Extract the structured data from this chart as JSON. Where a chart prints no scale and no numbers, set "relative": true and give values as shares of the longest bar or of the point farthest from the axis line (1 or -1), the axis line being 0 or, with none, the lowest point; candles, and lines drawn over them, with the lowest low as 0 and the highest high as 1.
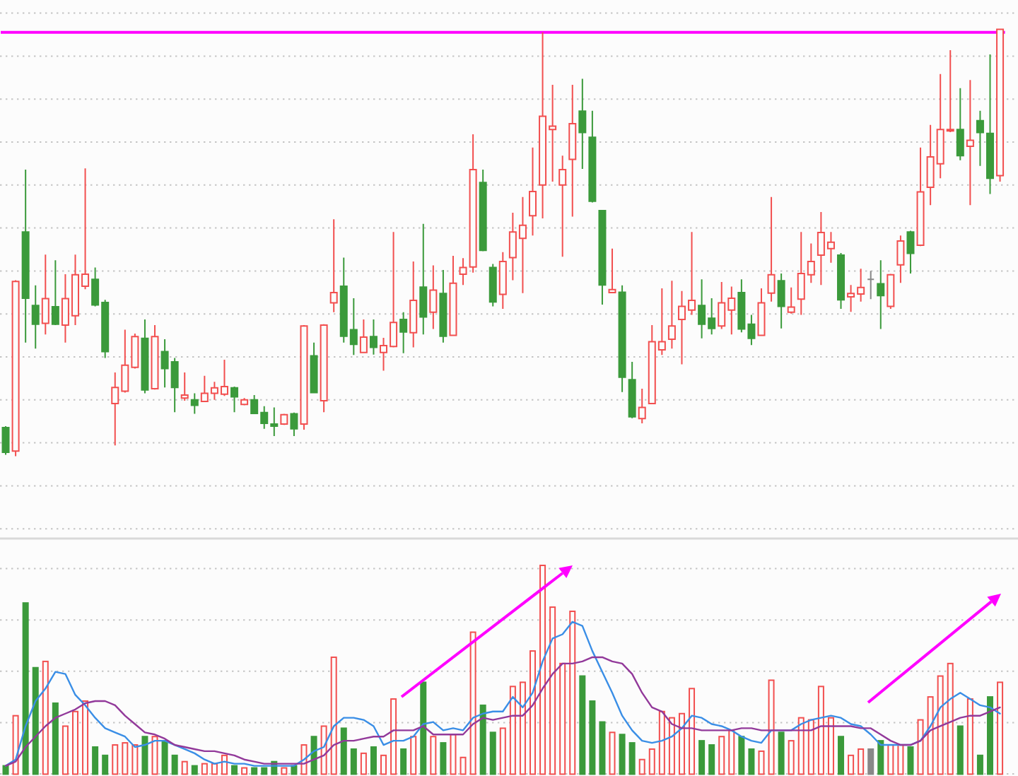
{
  "chart_data": [
    {
      "type": "candlestick",
      "relative": true,
      "grid": "y",
      "categories": [
        null,
        null,
        null,
        null,
        null,
        null,
        null,
        null,
        null,
        null,
        null,
        null,
        null,
        null,
        null,
        null,
        null,
        null,
        null,
        null,
        null,
        null,
        null,
        null,
        null,
        null,
        null,
        null,
        null,
        null,
        null,
        null,
        null,
        null,
        null,
        null,
        null,
        null,
        null,
        null,
        null,
        null,
        null,
        null,
        null,
        null,
        null,
        null,
        null,
        null,
        null,
        null,
        null,
        null,
        null,
        null,
        null,
        null,
        null,
        null,
        null,
        null,
        null,
        null,
        null,
        null,
        null,
        null,
        null,
        null,
        null,
        null,
        null,
        null,
        null,
        null,
        null,
        null,
        null,
        null,
        null,
        null,
        null,
        null,
        null,
        null,
        null,
        null,
        null,
        null,
        null,
        null,
        null,
        null,
        null,
        null,
        null,
        null,
        null,
        null,
        null
      ],
      "ohlc": [
        [
          0.067,
          0.07,
          0.003,
          0.009
        ],
        [
          0.012,
          0.412,
          0,
          0.409
        ],
        [
          0.525,
          0.671,
          0.266,
          0.37
        ],
        [
          0.353,
          0.4,
          0.252,
          0.309
        ],
        [
          0.311,
          0.472,
          0.285,
          0.369
        ],
        [
          0.35,
          0.459,
          0.307,
          0.309
        ],
        [
          0.307,
          0.426,
          0.266,
          0.369
        ],
        [
          0.329,
          0.472,
          0.307,
          0.425
        ],
        [
          0.398,
          0.674,
          0.391,
          0.426
        ],
        [
          0.414,
          0.442,
          0.351,
          0.354
        ],
        [
          0.36,
          0.366,
          0.23,
          0.245
        ],
        [
          0.123,
          0.196,
          0.025,
          0.161
        ],
        [
          0.152,
          0.296,
          0.149,
          0.213
        ],
        [
          0.208,
          0.287,
          0.205,
          0.28
        ],
        [
          0.276,
          0.32,
          0.147,
          0.155
        ],
        [
          0.158,
          0.307,
          0.156,
          0.28
        ],
        [
          0.245,
          0.274,
          0.161,
          0.205
        ],
        [
          0.221,
          0.23,
          0.103,
          0.161
        ],
        [
          0.136,
          0.196,
          0.13,
          0.143
        ],
        [
          0.132,
          0.147,
          0.099,
          0.119
        ],
        [
          0.128,
          0.188,
          0.128,
          0.147
        ],
        [
          0.147,
          0.174,
          0.132,
          0.16
        ],
        [
          0.145,
          0.226,
          0.141,
          0.163
        ],
        [
          0.16,
          0.163,
          0.103,
          0.139
        ],
        [
          0.121,
          0.136,
          0.119,
          0.132
        ],
        [
          0.132,
          0.143,
          0.1,
          0.1
        ],
        [
          0.102,
          0.117,
          0.064,
          0.077
        ],
        [
          0.075,
          0.114,
          0.047,
          0.07
        ],
        [
          0.075,
          0.099,
          0.073,
          0.097
        ],
        [
          0.099,
          0.102,
          0.047,
          0.064
        ],
        [
          0.075,
          0.307,
          0.062,
          0.305
        ],
        [
          0.235,
          0.266,
          0.147,
          0.149
        ],
        [
          0.13,
          0.309,
          0.103,
          0.307
        ],
        [
          0.359,
          0.555,
          0.337,
          0.383
        ],
        [
          0.398,
          0.465,
          0.266,
          0.281
        ],
        [
          0.296,
          0.37,
          0.237,
          0.262
        ],
        [
          0.243,
          0.32,
          0.241,
          0.279
        ],
        [
          0.28,
          0.32,
          0.238,
          0.255
        ],
        [
          0.243,
          0.277,
          0.2,
          0.259
        ],
        [
          0.257,
          0.525,
          0.255,
          0.313
        ],
        [
          0.32,
          0.337,
          0.241,
          0.291
        ],
        [
          0.289,
          0.456,
          0.255,
          0.365
        ],
        [
          0.396,
          0.544,
          0.285,
          0.326
        ],
        [
          0.337,
          0.447,
          0.298,
          0.389
        ],
        [
          0.381,
          0.436,
          0.266,
          0.281
        ],
        [
          0.283,
          0.469,
          0.283,
          0.405
        ],
        [
          0.426,
          0.464,
          0.401,
          0.442
        ],
        [
          0.443,
          0.754,
          0.43,
          0.671
        ],
        [
          0.641,
          0.671,
          0.48,
          0.482
        ],
        [
          0.442,
          0.45,
          0.351,
          0.361
        ],
        [
          0.379,
          0.478,
          0.345,
          0.456
        ],
        [
          0.465,
          0.57,
          0.412,
          0.525
        ],
        [
          0.51,
          0.607,
          0.382,
          0.541
        ],
        [
          0.563,
          0.723,
          0.517,
          0.62
        ],
        [
          0.635,
          0.993,
          0.557,
          0.796
        ],
        [
          0.765,
          0.87,
          0.643,
          0.773
        ],
        [
          0.635,
          0.704,
          0.467,
          0.671
        ],
        [
          0.695,
          0.87,
          0.561,
          0.779
        ],
        [
          0.808,
          0.884,
          0.673,
          0.758
        ],
        [
          0.747,
          0.809,
          0.594,
          0.597
        ],
        [
          0.575,
          0.575,
          0.355,
          0.401
        ],
        [
          0.383,
          0.486,
          0.382,
          0.39
        ],
        [
          0.384,
          0.4,
          0.15,
          0.185
        ],
        [
          0.179,
          0.221,
          0.089,
          0.092
        ],
        [
          0.088,
          0.158,
          0.077,
          0.114
        ],
        [
          0.123,
          0.307,
          0.123,
          0.268
        ],
        [
          0.249,
          0.393,
          0.237,
          0.268
        ],
        [
          0.274,
          0.411,
          0.252,
          0.305
        ],
        [
          0.32,
          0.387,
          0.215,
          0.351
        ],
        [
          0.342,
          0.525,
          0.331,
          0.365
        ],
        [
          0.353,
          0.414,
          0.276,
          0.309
        ],
        [
          0.323,
          0.37,
          0.285,
          0.299
        ],
        [
          0.305,
          0.408,
          0.298,
          0.359
        ],
        [
          0.342,
          0.397,
          0.285,
          0.37
        ],
        [
          0.383,
          0.414,
          0.29,
          0.298
        ],
        [
          0.309,
          0.331,
          0.26,
          0.276
        ],
        [
          0.283,
          0.393,
          0.283,
          0.359
        ],
        [
          0.382,
          0.607,
          0.362,
          0.425
        ],
        [
          0.411,
          0.428,
          0.299,
          0.351
        ],
        [
          0.337,
          0.395,
          0.334,
          0.349
        ],
        [
          0.368,
          0.525,
          0.331,
          0.428
        ],
        [
          0.425,
          0.498,
          0.406,
          0.456
        ],
        [
          0.471,
          0.572,
          0.401,
          0.524
        ],
        [
          0.486,
          0.525,
          0.453,
          0.501
        ],
        [
          0.471,
          0.476,
          0.345,
          0.366
        ],
        [
          0.373,
          0.401,
          0.338,
          0.381
        ],
        [
          0.38,
          0.439,
          0.362,
          0.395
        ],
        [
          0.414,
          0.434,
          0.368,
          0.414
        ],
        [
          0.404,
          0.459,
          0.298,
          0.376
        ],
        [
          0.351,
          0.427,
          0.345,
          0.425
        ],
        [
          0.448,
          0.517,
          0.406,
          0.504
        ],
        [
          0.525,
          0.528,
          0.428,
          0.475
        ],
        [
          0.494,
          0.723,
          0.492,
          0.619
        ],
        [
          0.63,
          0.776,
          0.588,
          0.701
        ],
        [
          0.685,
          0.895,
          0.651,
          0.765
        ],
        [
          0.762,
          0.951,
          0.759,
          0.765
        ],
        [
          0.765,
          0.862,
          0.693,
          0.704
        ],
        [
          0.726,
          0.881,
          0.588,
          0.74
        ],
        [
          0.786,
          0.809,
          0.68,
          0.758
        ],
        [
          0.756,
          0.941,
          0.614,
          0.651
        ],
        [
          0.657,
          1,
          0.643,
          1
        ]
      ],
      "colors": [
        "#3b9a3b",
        "#f24f4f",
        "#3b9a3b",
        "#3b9a3b",
        "#f24f4f",
        "#3b9a3b",
        "#f24f4f",
        "#f24f4f",
        "#f24f4f",
        "#3b9a3b",
        "#3b9a3b",
        "#f24f4f",
        "#f24f4f",
        "#f24f4f",
        "#3b9a3b",
        "#f24f4f",
        "#3b9a3b",
        "#3b9a3b",
        "#f24f4f",
        "#3b9a3b",
        "#f24f4f",
        "#f24f4f",
        "#f24f4f",
        "#3b9a3b",
        "#f24f4f",
        "#3b9a3b",
        "#3b9a3b",
        "#3b9a3b",
        "#f24f4f",
        "#3b9a3b",
        "#f24f4f",
        "#3b9a3b",
        "#f24f4f",
        "#f24f4f",
        "#3b9a3b",
        "#3b9a3b",
        "#f24f4f",
        "#3b9a3b",
        "#f24f4f",
        "#f24f4f",
        "#3b9a3b",
        "#f24f4f",
        "#3b9a3b",
        "#f24f4f",
        "#3b9a3b",
        "#f24f4f",
        "#f24f4f",
        "#f24f4f",
        "#3b9a3b",
        "#3b9a3b",
        "#f24f4f",
        "#f24f4f",
        "#f24f4f",
        "#f24f4f",
        "#f24f4f",
        "#f24f4f",
        "#f24f4f",
        "#f24f4f",
        "#3b9a3b",
        "#3b9a3b",
        "#3b9a3b",
        "#f24f4f",
        "#3b9a3b",
        "#3b9a3b",
        "#f24f4f",
        "#f24f4f",
        "#f24f4f",
        "#f24f4f",
        "#f24f4f",
        "#f24f4f",
        "#3b9a3b",
        "#3b9a3b",
        "#f24f4f",
        "#f24f4f",
        "#3b9a3b",
        "#3b9a3b",
        "#f24f4f",
        "#f24f4f",
        "#3b9a3b",
        "#f24f4f",
        "#f24f4f",
        "#f24f4f",
        "#f24f4f",
        "#f24f4f",
        "#3b9a3b",
        "#f24f4f",
        "#f24f4f",
        "#888888",
        "#3b9a3b",
        "#f24f4f",
        "#f24f4f",
        "#3b9a3b",
        "#f24f4f",
        "#f24f4f",
        "#f24f4f",
        "#f24f4f",
        "#3b9a3b",
        "#f24f4f",
        "#3b9a3b",
        "#3b9a3b",
        "#f24f4f"
      ],
      "ref_lines": [
        {
          "axis": "y",
          "value": 0.993,
          "color": "#ff00ff"
        }
      ]
    },
    {
      "type": "bar",
      "relative": true,
      "grid": "y",
      "categories": [
        null,
        null,
        null,
        null,
        null,
        null,
        null,
        null,
        null,
        null,
        null,
        null,
        null,
        null,
        null,
        null,
        null,
        null,
        null,
        null,
        null,
        null,
        null,
        null,
        null,
        null,
        null,
        null,
        null,
        null,
        null,
        null,
        null,
        null,
        null,
        null,
        null,
        null,
        null,
        null,
        null,
        null,
        null,
        null,
        null,
        null,
        null,
        null,
        null,
        null,
        null,
        null,
        null,
        null,
        null,
        null,
        null,
        null,
        null,
        null,
        null,
        null,
        null,
        null,
        null,
        null,
        null,
        null,
        null,
        null,
        null,
        null,
        null,
        null,
        null,
        null,
        null,
        null,
        null,
        null,
        null,
        null,
        null,
        null,
        null,
        null,
        null,
        null,
        null,
        null,
        null,
        null,
        null,
        null,
        null,
        null,
        null,
        null,
        null,
        null,
        null
      ],
      "series": [
        {
          "type": "bar",
          "colors": [
            "#3b9a3b",
            "#f24f4f",
            "#3b9a3b",
            "#3b9a3b",
            "#f24f4f",
            "#3b9a3b",
            "#f24f4f",
            "#f24f4f",
            "#f24f4f",
            "#3b9a3b",
            "#3b9a3b",
            "#f24f4f",
            "#f24f4f",
            "#f24f4f",
            "#3b9a3b",
            "#f24f4f",
            "#3b9a3b",
            "#3b9a3b",
            "#f24f4f",
            "#3b9a3b",
            "#f24f4f",
            "#f24f4f",
            "#f24f4f",
            "#3b9a3b",
            "#f24f4f",
            "#3b9a3b",
            "#3b9a3b",
            "#3b9a3b",
            "#f24f4f",
            "#3b9a3b",
            "#f24f4f",
            "#3b9a3b",
            "#f24f4f",
            "#f24f4f",
            "#3b9a3b",
            "#3b9a3b",
            "#f24f4f",
            "#3b9a3b",
            "#f24f4f",
            "#f24f4f",
            "#3b9a3b",
            "#f24f4f",
            "#3b9a3b",
            "#f24f4f",
            "#3b9a3b",
            "#f24f4f",
            "#f24f4f",
            "#f24f4f",
            "#3b9a3b",
            "#3b9a3b",
            "#f24f4f",
            "#f24f4f",
            "#f24f4f",
            "#f24f4f",
            "#f24f4f",
            "#f24f4f",
            "#f24f4f",
            "#f24f4f",
            "#3b9a3b",
            "#3b9a3b",
            "#3b9a3b",
            "#f24f4f",
            "#3b9a3b",
            "#3b9a3b",
            "#f24f4f",
            "#f24f4f",
            "#f24f4f",
            "#f24f4f",
            "#f24f4f",
            "#f24f4f",
            "#3b9a3b",
            "#3b9a3b",
            "#f24f4f",
            "#f24f4f",
            "#3b9a3b",
            "#3b9a3b",
            "#f24f4f",
            "#f24f4f",
            "#3b9a3b",
            "#f24f4f",
            "#f24f4f",
            "#f24f4f",
            "#f24f4f",
            "#f24f4f",
            "#3b9a3b",
            "#f24f4f",
            "#f24f4f",
            "#888888",
            "#3b9a3b",
            "#f24f4f",
            "#f24f4f",
            "#3b9a3b",
            "#f24f4f",
            "#f24f4f",
            "#f24f4f",
            "#f24f4f",
            "#3b9a3b",
            "#f24f4f",
            "#3b9a3b",
            "#3b9a3b",
            "#f24f4f"
          ],
          "values": [
            0.04,
            0.28,
            0.82,
            0.51,
            0.54,
            0.34,
            0.23,
            0.3,
            0.35,
            0.13,
            0.09,
            0.14,
            0.15,
            0.14,
            0.18,
            0.18,
            0.16,
            0.09,
            0.06,
            0.04,
            0.05,
            0.05,
            0.09,
            0.04,
            0.03,
            0.03,
            0.03,
            0.06,
            0.03,
            0.04,
            0.14,
            0.18,
            0.23,
            0.56,
            0.22,
            0.12,
            0.1,
            0.13,
            0.09,
            0.36,
            0.12,
            0.18,
            0.44,
            0.18,
            0.15,
            0.19,
            0.08,
            0.68,
            0.33,
            0.2,
            0.22,
            0.42,
            0.44,
            0.59,
            1,
            0.8,
            0.53,
            0.78,
            0.47,
            0.35,
            0.25,
            0.2,
            0.19,
            0.15,
            0.07,
            0.12,
            0.3,
            0.27,
            0.29,
            0.41,
            0.16,
            0.14,
            0.18,
            0.21,
            0.18,
            0.12,
            0.11,
            0.45,
            0.2,
            0.16,
            0.27,
            0.26,
            0.42,
            0.27,
            0.18,
            0.09,
            0.12,
            0.12,
            0.16,
            0.14,
            0.14,
            0.13,
            0.26,
            0.37,
            0.47,
            0.53,
            0.23,
            0.36,
            0.09,
            0.37,
            0.44
          ]
        },
        {
          "type": "line",
          "color": "#3a8ee6",
          "values": [
            0.04,
            0.07,
            0.23,
            0.35,
            0.41,
            0.49,
            0.48,
            0.38,
            0.33,
            0.27,
            0.22,
            0.2,
            0.18,
            0.13,
            0.14,
            0.16,
            0.16,
            0.14,
            0.12,
            0.1,
            0.07,
            0.05,
            0.06,
            0.05,
            0.05,
            0.04,
            0.04,
            0.04,
            0.04,
            0.04,
            0.07,
            0.11,
            0.13,
            0.23,
            0.27,
            0.27,
            0.26,
            0.23,
            0.14,
            0.16,
            0.16,
            0.18,
            0.24,
            0.25,
            0.21,
            0.22,
            0.21,
            0.27,
            0.29,
            0.3,
            0.3,
            0.37,
            0.32,
            0.39,
            0.54,
            0.65,
            0.67,
            0.73,
            0.71,
            0.59,
            0.49,
            0.39,
            0.28,
            0.21,
            0.16,
            0.15,
            0.16,
            0.18,
            0.22,
            0.28,
            0.27,
            0.24,
            0.23,
            0.21,
            0.18,
            0.16,
            0.15,
            0.21,
            0.21,
            0.21,
            0.24,
            0.26,
            0.27,
            0.28,
            0.27,
            0.24,
            0.23,
            0.19,
            0.14,
            0.14,
            0.14,
            0.14,
            0.16,
            0.23,
            0.32,
            0.36,
            0.39,
            0.36,
            0.33,
            0.32,
            0.29
          ]
        },
        {
          "type": "line",
          "color": "#92399a",
          "values": [
            0.04,
            0.06,
            0.13,
            0.18,
            0.23,
            0.27,
            0.29,
            0.31,
            0.34,
            0.35,
            0.35,
            0.33,
            0.28,
            0.24,
            0.2,
            0.19,
            0.17,
            0.14,
            0.13,
            0.12,
            0.11,
            0.11,
            0.1,
            0.09,
            0.07,
            0.06,
            0.05,
            0.05,
            0.05,
            0.05,
            0.05,
            0.07,
            0.09,
            0.14,
            0.16,
            0.16,
            0.17,
            0.18,
            0.18,
            0.21,
            0.21,
            0.21,
            0.23,
            0.19,
            0.19,
            0.19,
            0.19,
            0.24,
            0.27,
            0.26,
            0.27,
            0.28,
            0.28,
            0.33,
            0.41,
            0.48,
            0.53,
            0.53,
            0.54,
            0.56,
            0.56,
            0.54,
            0.53,
            0.48,
            0.39,
            0.32,
            0.3,
            0.24,
            0.22,
            0.22,
            0.21,
            0.21,
            0.21,
            0.21,
            0.22,
            0.22,
            0.21,
            0.21,
            0.21,
            0.21,
            0.21,
            0.21,
            0.23,
            0.23,
            0.23,
            0.23,
            0.22,
            0.22,
            0.19,
            0.16,
            0.14,
            0.14,
            0.16,
            0.21,
            0.23,
            0.25,
            0.27,
            0.28,
            0.28,
            0.3,
            0.32
          ]
        }
      ]
    }
  ]
}
